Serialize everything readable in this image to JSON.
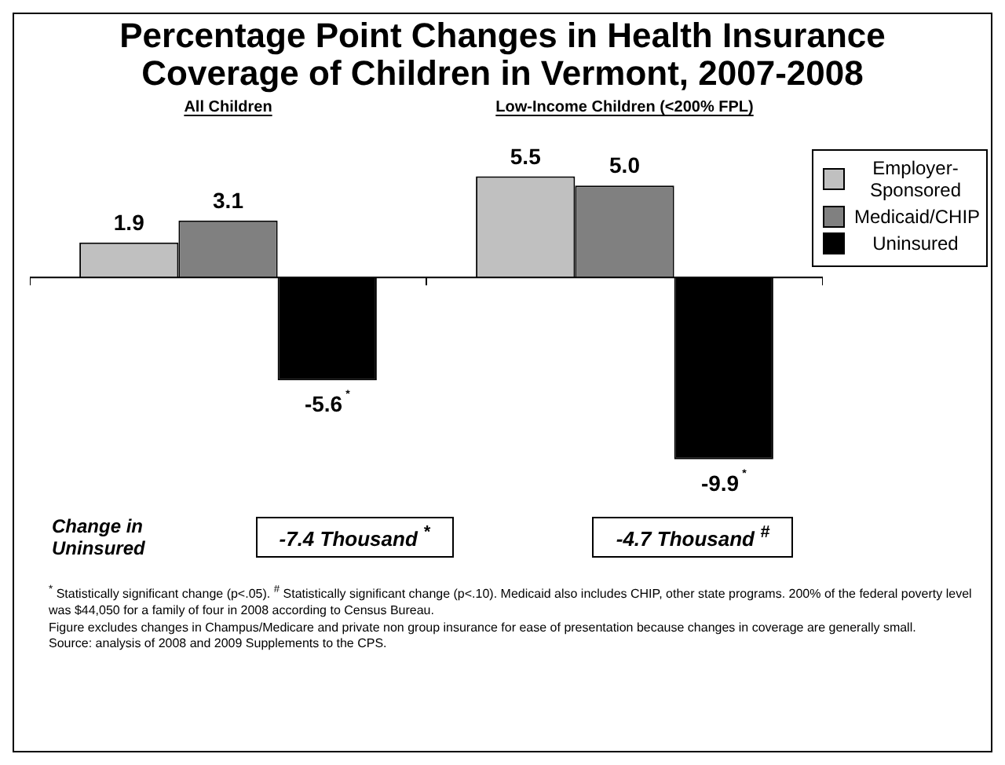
{
  "chart_data": {
    "type": "bar",
    "title": "Percentage Point Changes in Health Insurance Coverage of Children in Vermont, 2007-2008",
    "categories": [
      "All Children",
      "Low-Income Children (<200% FPL)"
    ],
    "series": [
      {
        "name": "Employer-Sponsored",
        "color": "#c0c0c0",
        "values": [
          1.9,
          5.5
        ],
        "value_labels": [
          "1.9",
          "5.5"
        ]
      },
      {
        "name": "Medicaid/CHIP",
        "color": "#808080",
        "values": [
          3.1,
          5.0
        ],
        "value_labels": [
          "3.1",
          "5.0"
        ]
      },
      {
        "name": "Uninsured",
        "color": "#000000",
        "values": [
          -5.6,
          -9.9
        ],
        "value_labels": [
          "-5.6$^{*}$",
          "-9.9$^{*}$"
        ]
      }
    ],
    "legend": "top right",
    "annotations": [
      "Change in Uninsured",
      "-7.4 Thousand $^{*}$",
      "-4.7 Thousand $^{#}$",
      "$^{*}$ Statistically significant change (p<.05). $^{#}$ Statistically significant change (p<.10).  Medicaid also includes CHIP, other state programs.  200% of the federal poverty level was $44,050 for a family of four in 2008 according to Census Bureau.",
      "Figure excludes changes in Champus/Medicare and private non group insurance for ease of presentation because changes in coverage are generally small.",
      "Source: analysis of 2008 and 2009 Supplements to the CPS."
    ]
  }
}
